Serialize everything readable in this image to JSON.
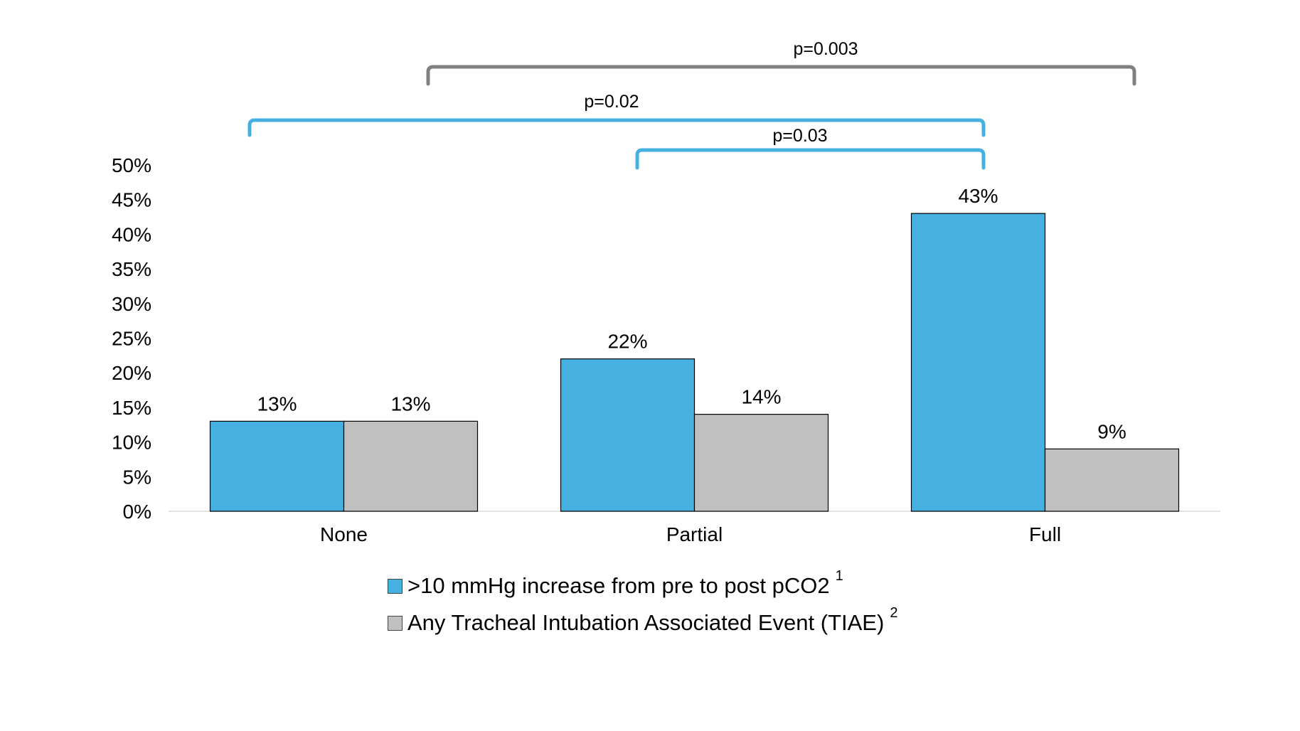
{
  "chart_data": {
    "type": "bar",
    "categories": [
      "None",
      "Partial",
      "Full"
    ],
    "series": [
      {
        "name": ">10 mmHg increase from pre to post pCO2",
        "note_sup": "1",
        "values": [
          13,
          22,
          43
        ],
        "labels": [
          "13%",
          "22%",
          "43%"
        ],
        "color": "#46B0E0"
      },
      {
        "name": "Any Tracheal Intubation Associated Event (TIAE)",
        "note_sup": "2",
        "values": [
          13,
          14,
          9
        ],
        "labels": [
          "13%",
          "14%",
          "9%"
        ],
        "color": "#C0C0C0"
      }
    ],
    "ylim": [
      0,
      50
    ],
    "yticks": [
      0,
      5,
      10,
      15,
      20,
      25,
      30,
      35,
      40,
      45,
      50
    ],
    "ytick_labels": [
      "0%",
      "5%",
      "10%",
      "15%",
      "20%",
      "25%",
      "30%",
      "35%",
      "40%",
      "45%",
      "50%"
    ],
    "title": "",
    "xlabel": "",
    "ylabel": "",
    "grid": false,
    "legend_position": "bottom",
    "brackets": [
      {
        "label": "p=0.003",
        "from": "Partial",
        "to": "Full",
        "color": "#808080"
      },
      {
        "label": "p=0.02",
        "from": "None",
        "to": "Full",
        "color": "#46B0E0"
      },
      {
        "label": "p=0.03",
        "from": "Partial",
        "to": "Full",
        "color": "#46B0E0"
      }
    ]
  }
}
